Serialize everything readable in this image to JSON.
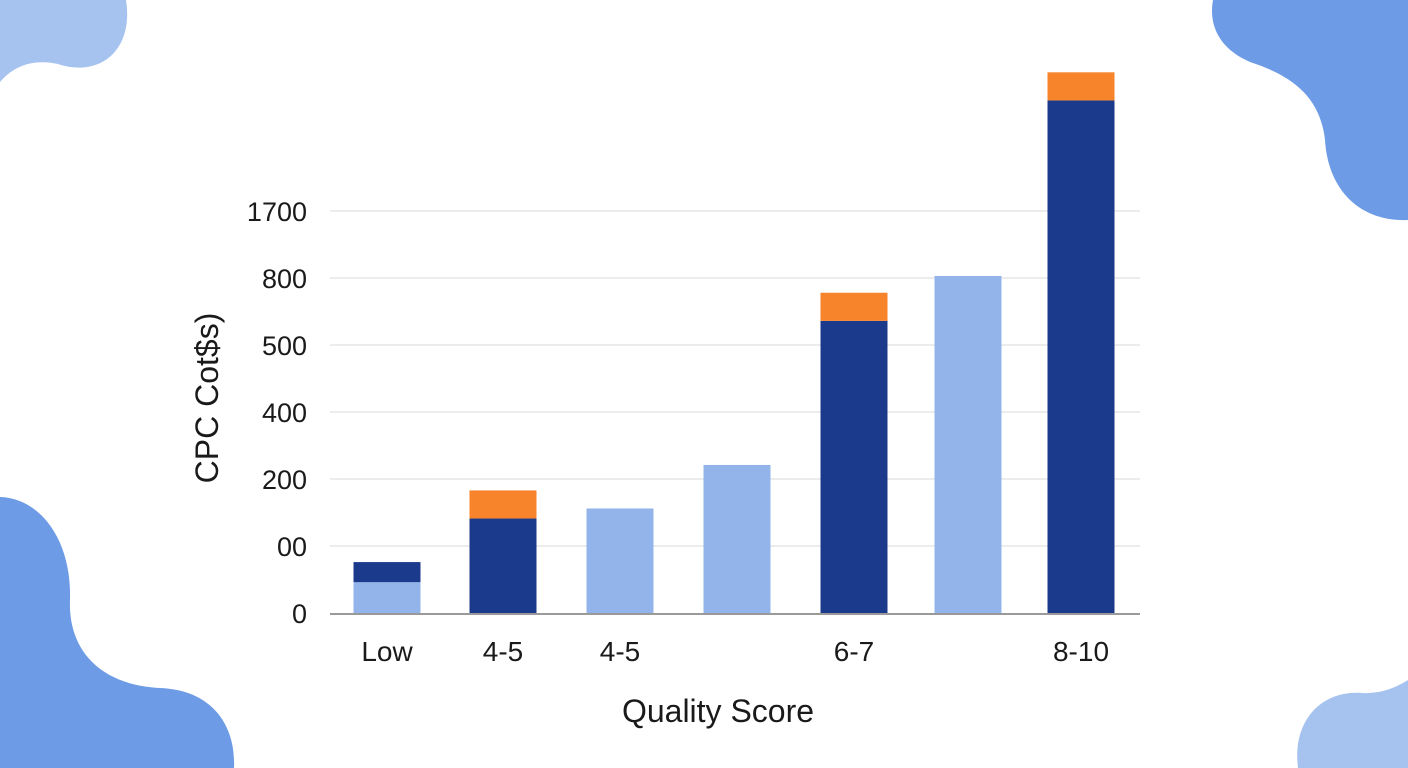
{
  "colors": {
    "dark": "#1c3a8c",
    "light": "#92b4ea",
    "accent": "#f7832a",
    "blob": "#6d9be6",
    "blob_light": "#a6c3f0",
    "grid": "#e6e6e6",
    "axis": "#9a9a9a"
  },
  "chart_data": {
    "type": "bar",
    "stacked": true,
    "xlabel": "Quality Score",
    "ylabel": "CPC  Cot$s)",
    "grid": true,
    "yticks": [
      {
        "label": "0",
        "pos": 0
      },
      {
        "label": "00",
        "pos": 1
      },
      {
        "label": "200",
        "pos": 2
      },
      {
        "label": "400",
        "pos": 3
      },
      {
        "label": "500",
        "pos": 4
      },
      {
        "label": "800",
        "pos": 5
      },
      {
        "label": "1700",
        "pos": 6
      }
    ],
    "ylim": [
      0,
      8.1
    ],
    "bars": [
      {
        "label": "Low",
        "segments": [
          {
            "color": "light",
            "value": 0.46
          },
          {
            "color": "dark",
            "value": 0.3
          }
        ]
      },
      {
        "label": "4-5",
        "segments": [
          {
            "color": "dark",
            "value": 1.41
          },
          {
            "color": "accent",
            "value": 0.42
          }
        ]
      },
      {
        "label": "4-5",
        "segments": [
          {
            "color": "light",
            "value": 1.56
          }
        ]
      },
      {
        "label": "",
        "segments": [
          {
            "color": "light",
            "value": 2.21
          }
        ]
      },
      {
        "label": "6-7",
        "segments": [
          {
            "color": "dark",
            "value": 4.36
          },
          {
            "color": "accent",
            "value": 0.42
          }
        ]
      },
      {
        "label": "",
        "segments": [
          {
            "color": "light",
            "value": 5.03
          }
        ]
      },
      {
        "label": "8-10",
        "segments": [
          {
            "color": "dark",
            "value": 7.65
          },
          {
            "color": "accent",
            "value": 0.42
          }
        ]
      }
    ]
  }
}
